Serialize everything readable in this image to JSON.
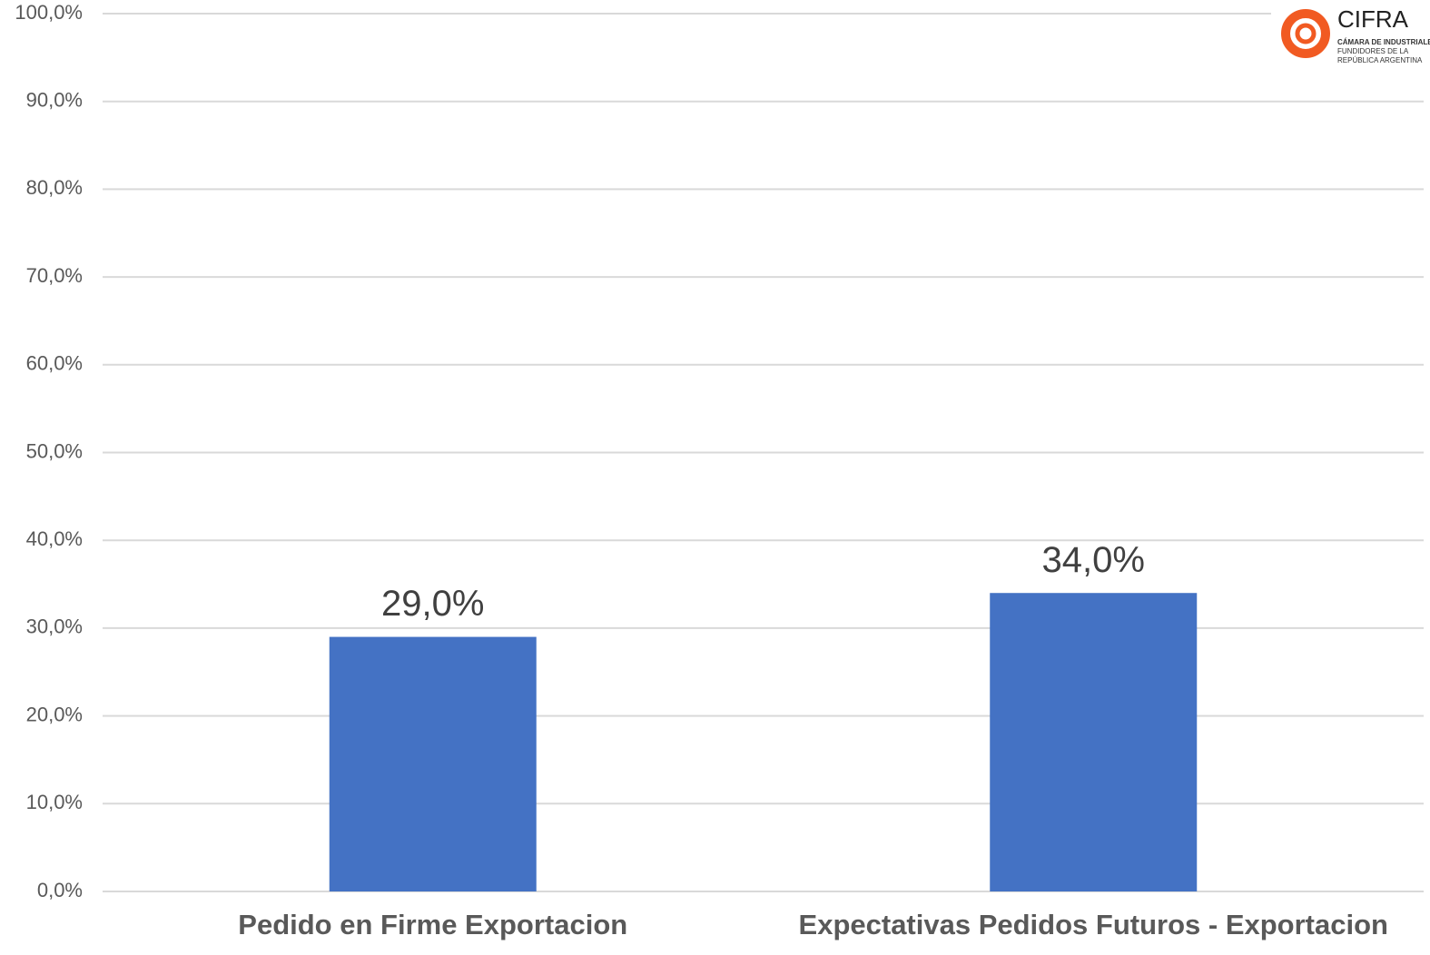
{
  "chart_data": {
    "type": "bar",
    "categories": [
      "Pedido en Firme Exportacion",
      "Expectativas Pedidos Futuros - Exportacion"
    ],
    "values": [
      29,
      34
    ],
    "value_labels": [
      "29,0%",
      "34,0%"
    ],
    "color": "#4472c4",
    "ylim": [
      0,
      100
    ],
    "yticks": [
      {
        "value": 0,
        "label": "0,0%"
      },
      {
        "value": 10,
        "label": "10,0%"
      },
      {
        "value": 20,
        "label": "20,0%"
      },
      {
        "value": 30,
        "label": "30,0%"
      },
      {
        "value": 40,
        "label": "40,0%"
      },
      {
        "value": 50,
        "label": "50,0%"
      },
      {
        "value": 60,
        "label": "60,0%"
      },
      {
        "value": 70,
        "label": "70,0%"
      },
      {
        "value": 80,
        "label": "80,0%"
      },
      {
        "value": 90,
        "label": "90,0%"
      },
      {
        "value": 100,
        "label": "100,0%"
      }
    ],
    "grid": true
  },
  "logo": {
    "name": "CIFRA",
    "lines": [
      "CÁMARA DE INDUSTRIALE",
      "FUNDIDORES DE LA",
      "REPÚBLICA ARGENTINA"
    ]
  }
}
